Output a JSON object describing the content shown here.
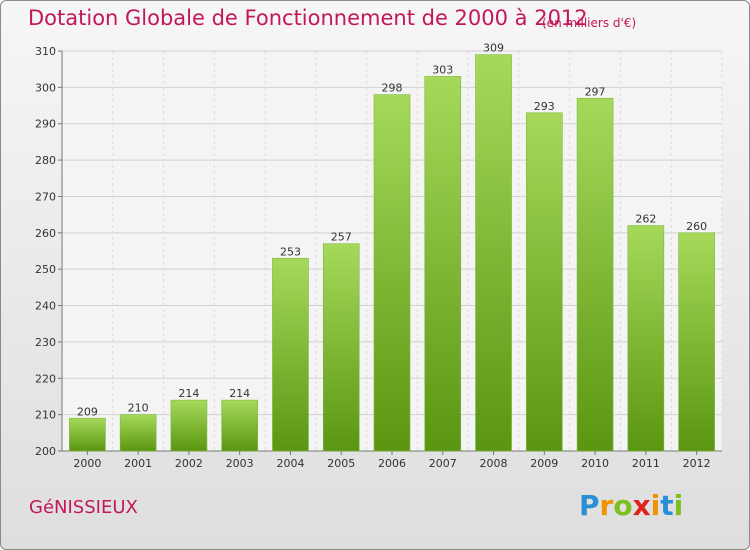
{
  "title": "Dotation Globale de Fonctionnement de 2000 à 2012",
  "subtitle": "(en milliers d'€)",
  "commune": "GéNISSIEUX",
  "brand": {
    "letters": [
      "P",
      "r",
      "o",
      "x",
      "i",
      "t",
      "i"
    ],
    "colors": [
      "#2a8fd4",
      "#f39200",
      "#7cbf1e",
      "#e2231a",
      "#f39200",
      "#2a8fd4",
      "#7cbf1e"
    ]
  },
  "colors": {
    "bar_top": "#a6d95a",
    "bar_bottom": "#5a9612",
    "title": "#c2185b"
  },
  "chart_data": {
    "type": "bar",
    "categories": [
      "2000",
      "2001",
      "2002",
      "2003",
      "2004",
      "2005",
      "2006",
      "2007",
      "2008",
      "2009",
      "2010",
      "2011",
      "2012"
    ],
    "values": [
      209,
      210,
      214,
      214,
      253,
      257,
      298,
      303,
      309,
      293,
      297,
      262,
      260
    ],
    "title": "Dotation Globale de Fonctionnement de 2000 à 2012",
    "subtitle": "(en milliers d'€)",
    "ylim": [
      200,
      310
    ],
    "yticks": [
      200,
      210,
      220,
      230,
      240,
      250,
      260,
      270,
      280,
      290,
      300,
      310
    ],
    "grid": true,
    "data_labels": true
  }
}
